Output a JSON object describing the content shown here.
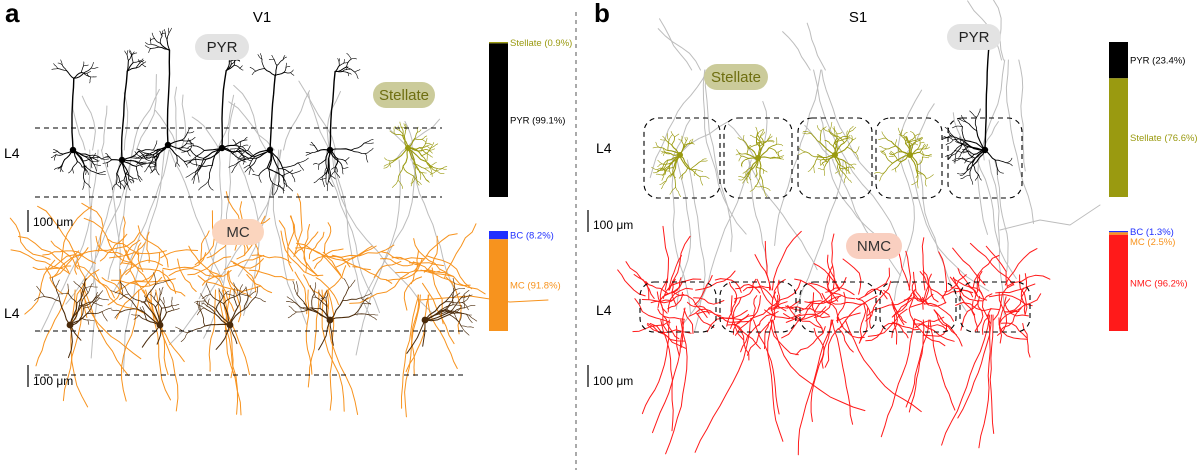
{
  "colors": {
    "pyr": "#000000",
    "stellate": "#9a9a10",
    "mc": "#f7931e",
    "mc_soma": "#4a2a0a",
    "bc": "#2030ff",
    "nmc": "#ff1a1a",
    "gray_axon": "#bdbdbd",
    "pyr_bubble": "#e3e3e3",
    "stellate_bubble": "#cbcb9a",
    "mc_bubble": "#fbd5be",
    "nmc_bubble": "#f9cfc0"
  },
  "panel_a": {
    "letter": "a",
    "title": "V1",
    "layer_top": "L4",
    "layer_bottom": "L4",
    "scale_top": "100 μm",
    "scale_bottom": "100 μm",
    "bubbles": {
      "pyr": "PYR",
      "stellate": "Stellate",
      "mc": "MC"
    },
    "bar_top": [
      {
        "label": "Stellate (0.9%)",
        "fraction": 0.009,
        "color_key": "stellate"
      },
      {
        "label": "PYR (99.1%)",
        "fraction": 0.991,
        "color_key": "pyr"
      }
    ],
    "bar_bottom": [
      {
        "label": "BC (8.2%)",
        "fraction": 0.082,
        "color_key": "bc"
      },
      {
        "label": "MC (91.8%)",
        "fraction": 0.918,
        "color_key": "mc"
      }
    ]
  },
  "panel_b": {
    "letter": "b",
    "title": "S1",
    "layer_top": "L4",
    "layer_bottom": "L4",
    "scale_top": "100 μm",
    "scale_bottom": "100 μm",
    "bubbles": {
      "pyr": "PYR",
      "stellate": "Stellate",
      "nmc": "NMC"
    },
    "bar_top": [
      {
        "label": "PYR (23.4%)",
        "fraction": 0.234,
        "color_key": "pyr"
      },
      {
        "label": "Stellate (76.6%)",
        "fraction": 0.766,
        "color_key": "stellate"
      }
    ],
    "bar_bottom": [
      {
        "label": "BC (1.3%)",
        "fraction": 0.013,
        "color_key": "bc"
      },
      {
        "label": "MC (2.5%)",
        "fraction": 0.025,
        "color_key": "mc"
      },
      {
        "label": "NMC (96.2%)",
        "fraction": 0.962,
        "color_key": "nmc"
      }
    ]
  }
}
